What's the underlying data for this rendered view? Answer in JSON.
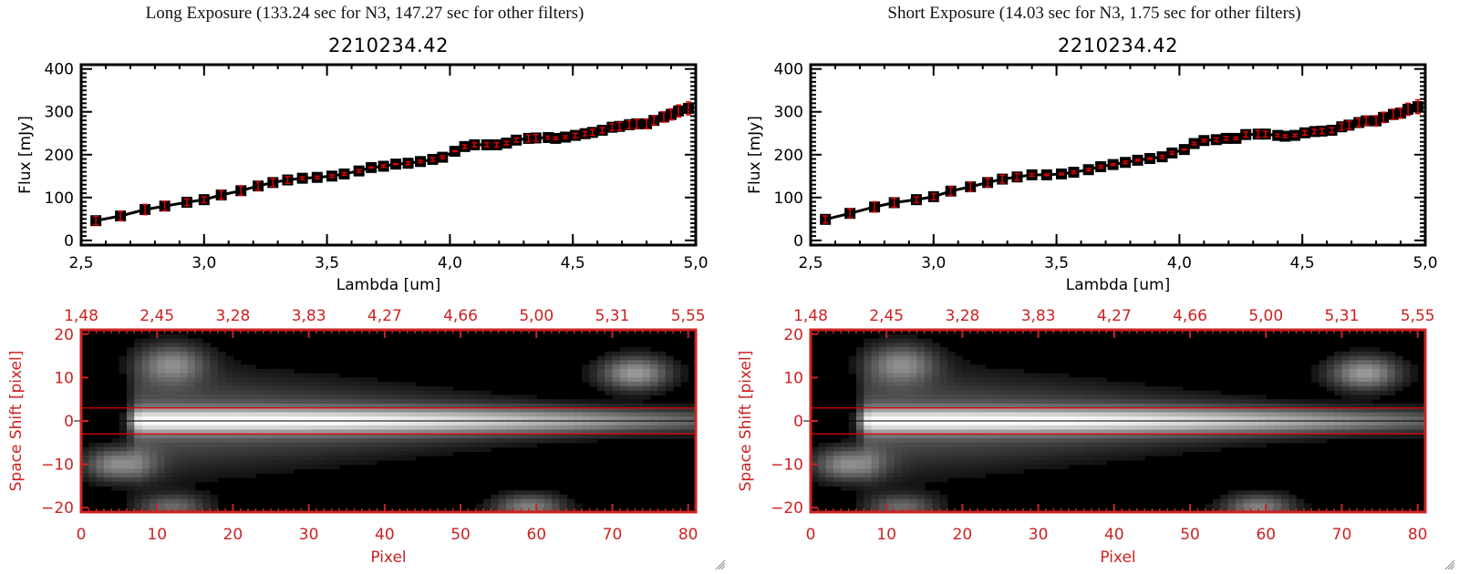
{
  "panels": [
    {
      "name": "long-exposure",
      "title": "Long Exposure (133.24 sec for N3, 147.27 sec for other filters)",
      "plot_title": "2210234.42"
    },
    {
      "name": "short-exposure",
      "title": "Short Exposure (14.03 sec for N3, 1.75 sec for other filters)",
      "plot_title": "2210234.42"
    }
  ],
  "colors": {
    "axis_black": "#000000",
    "error_bar": "#e00000",
    "image_axis": "#cc2222",
    "aperture_line": "#e00000",
    "center_line": "#000000"
  },
  "chart_data": [
    {
      "type": "line",
      "panel": "long-exposure",
      "title": "2210234.42",
      "xlabel": "Lambda [um]",
      "ylabel": "Flux [mJy]",
      "xlim": [
        2.5,
        5.0
      ],
      "ylim": [
        -11,
        410
      ],
      "xticks": [
        2.5,
        3.0,
        3.5,
        4.0,
        4.5,
        5.0
      ],
      "xtick_labels": [
        "2,5",
        "3,0",
        "3,5",
        "4,0",
        "4,5",
        "5,0"
      ],
      "yticks": [
        0,
        100,
        200,
        300,
        400
      ],
      "ytick_labels": [
        "0",
        "100",
        "200",
        "300",
        "400"
      ],
      "grid": false,
      "series": [
        {
          "name": "flux",
          "marker": "square",
          "x": [
            2.56,
            2.66,
            2.76,
            2.84,
            2.93,
            3.0,
            3.07,
            3.15,
            3.22,
            3.28,
            3.34,
            3.4,
            3.46,
            3.52,
            3.57,
            3.63,
            3.68,
            3.73,
            3.78,
            3.83,
            3.88,
            3.93,
            3.97,
            4.02,
            4.06,
            4.1,
            4.15,
            4.19,
            4.23,
            4.27,
            4.32,
            4.35,
            4.4,
            4.43,
            4.47,
            4.51,
            4.55,
            4.58,
            4.62,
            4.66,
            4.69,
            4.73,
            4.76,
            4.8,
            4.83,
            4.87,
            4.9,
            4.93,
            4.97
          ],
          "y": [
            46,
            57,
            72,
            80,
            89,
            95,
            106,
            116,
            127,
            135,
            141,
            145,
            147,
            150,
            155,
            162,
            170,
            173,
            178,
            180,
            184,
            189,
            194,
            208,
            219,
            223,
            223,
            223,
            227,
            234,
            238,
            239,
            240,
            238,
            241,
            245,
            249,
            252,
            257,
            264,
            266,
            270,
            272,
            272,
            280,
            288,
            294,
            302,
            308
          ],
          "yerr": [
            10,
            11,
            12,
            11,
            8,
            7,
            10,
            11,
            10,
            9,
            8,
            3,
            3,
            3,
            3,
            3,
            1,
            3,
            1,
            3,
            3,
            4,
            3,
            1,
            4,
            5,
            5,
            5,
            4,
            5,
            8,
            8,
            3,
            3,
            3,
            5,
            5,
            7,
            6,
            8,
            9,
            9,
            10,
            11,
            10,
            12,
            13,
            14,
            15
          ]
        }
      ]
    },
    {
      "type": "line",
      "panel": "short-exposure",
      "title": "2210234.42",
      "xlabel": "Lambda [um]",
      "ylabel": "Flux [mJy]",
      "xlim": [
        2.5,
        5.0
      ],
      "ylim": [
        -11,
        410
      ],
      "xticks": [
        2.5,
        3.0,
        3.5,
        4.0,
        4.5,
        5.0
      ],
      "xtick_labels": [
        "2,5",
        "3,0",
        "3,5",
        "4,0",
        "4,5",
        "5,0"
      ],
      "yticks": [
        0,
        100,
        200,
        300,
        400
      ],
      "ytick_labels": [
        "0",
        "100",
        "200",
        "300",
        "400"
      ],
      "grid": false,
      "series": [
        {
          "name": "flux",
          "marker": "square",
          "x": [
            2.56,
            2.66,
            2.76,
            2.84,
            2.93,
            3.0,
            3.07,
            3.15,
            3.22,
            3.28,
            3.34,
            3.4,
            3.46,
            3.52,
            3.57,
            3.63,
            3.68,
            3.73,
            3.78,
            3.83,
            3.88,
            3.93,
            3.97,
            4.02,
            4.06,
            4.1,
            4.15,
            4.19,
            4.23,
            4.27,
            4.32,
            4.35,
            4.4,
            4.43,
            4.47,
            4.51,
            4.55,
            4.58,
            4.62,
            4.66,
            4.69,
            4.73,
            4.76,
            4.8,
            4.83,
            4.87,
            4.9,
            4.93,
            4.97
          ],
          "y": [
            49,
            63,
            78,
            88,
            95,
            102,
            115,
            125,
            135,
            143,
            148,
            153,
            153,
            155,
            159,
            165,
            172,
            177,
            182,
            187,
            191,
            195,
            204,
            212,
            226,
            233,
            235,
            238,
            238,
            247,
            248,
            248,
            245,
            243,
            245,
            251,
            254,
            255,
            257,
            265,
            269,
            275,
            279,
            279,
            287,
            294,
            297,
            306,
            312
          ],
          "yerr": [
            8,
            10,
            12,
            10,
            7,
            7,
            10,
            11,
            10,
            9,
            8,
            3,
            2,
            2,
            3,
            3,
            3,
            2,
            3,
            2,
            2,
            3,
            3,
            1,
            3,
            3,
            4,
            4,
            3,
            6,
            8,
            7,
            3,
            3,
            3,
            5,
            5,
            6,
            6,
            8,
            9,
            9,
            10,
            12,
            12,
            12,
            12,
            14,
            16
          ]
        }
      ]
    },
    {
      "type": "heatmap",
      "panel": "long-exposure",
      "xlabel": "Pixel",
      "ylabel": "Space Shift [pixel]",
      "xlim": [
        0,
        81
      ],
      "ylim": [
        -21,
        21
      ],
      "xticks": [
        0,
        10,
        20,
        30,
        40,
        50,
        60,
        70,
        80
      ],
      "xtick_labels": [
        "0",
        "10",
        "20",
        "30",
        "40",
        "50",
        "60",
        "70",
        "80"
      ],
      "yticks": [
        -20,
        -10,
        0,
        10,
        20
      ],
      "ytick_labels": [
        "-20",
        "-10",
        "0",
        "10",
        "20"
      ],
      "top_tick_labels": [
        "1,48",
        "2,45",
        "3,28",
        "3,83",
        "4,27",
        "4,66",
        "5,00",
        "5,31",
        "5,55"
      ],
      "aperture": [
        -3,
        3
      ],
      "center": 0,
      "colormap": "grayscale",
      "sources": [
        {
          "x": 40,
          "y": 0,
          "sx": 34,
          "sy": 2.6,
          "amp": 1.0,
          "x0": 8
        },
        {
          "x": 12,
          "y": 13,
          "sx": 3,
          "sy": 3,
          "amp": 0.45
        },
        {
          "x": 5,
          "y": -10,
          "sx": 3,
          "sy": 2.5,
          "amp": 0.5
        },
        {
          "x": 73,
          "y": 11,
          "sx": 3,
          "sy": 2.5,
          "amp": 0.55
        },
        {
          "x": 59,
          "y": -20,
          "sx": 3,
          "sy": 2,
          "amp": 0.45
        },
        {
          "x": 12,
          "y": -20,
          "sx": 3,
          "sy": 2,
          "amp": 0.35
        }
      ]
    },
    {
      "type": "heatmap",
      "panel": "short-exposure",
      "xlabel": "Pixel",
      "ylabel": "Space Shift [pixel]",
      "xlim": [
        0,
        81
      ],
      "ylim": [
        -21,
        21
      ],
      "xticks": [
        0,
        10,
        20,
        30,
        40,
        50,
        60,
        70,
        80
      ],
      "xtick_labels": [
        "0",
        "10",
        "20",
        "30",
        "40",
        "50",
        "60",
        "70",
        "80"
      ],
      "yticks": [
        -20,
        -10,
        0,
        10,
        20
      ],
      "ytick_labels": [
        "-20",
        "-10",
        "0",
        "10",
        "20"
      ],
      "top_tick_labels": [
        "1,48",
        "2,45",
        "3,28",
        "3,83",
        "4,27",
        "4,66",
        "5,00",
        "5,31",
        "5,55"
      ],
      "aperture": [
        -3,
        3
      ],
      "center": 0,
      "colormap": "grayscale",
      "sources": [
        {
          "x": 40,
          "y": 0,
          "sx": 34,
          "sy": 2.6,
          "amp": 1.0,
          "x0": 8
        },
        {
          "x": 12,
          "y": 13,
          "sx": 3,
          "sy": 3,
          "amp": 0.45
        },
        {
          "x": 5,
          "y": -10,
          "sx": 3,
          "sy": 2.5,
          "amp": 0.5
        },
        {
          "x": 73,
          "y": 11,
          "sx": 3,
          "sy": 2.5,
          "amp": 0.55
        },
        {
          "x": 59,
          "y": -20,
          "sx": 3,
          "sy": 2,
          "amp": 0.45
        },
        {
          "x": 12,
          "y": -20,
          "sx": 3,
          "sy": 2,
          "amp": 0.35
        }
      ]
    }
  ]
}
